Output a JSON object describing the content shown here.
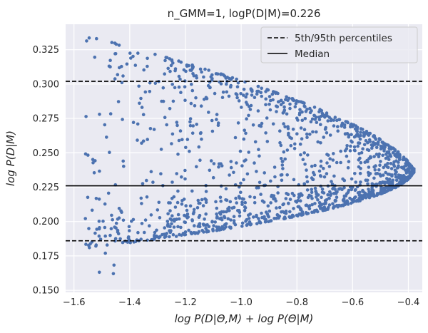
{
  "chart_data": {
    "type": "scatter",
    "title": "n_GMM=1, logP(D|M)=0.226",
    "xlabel": "log P(D|Θ,M) + log P(Θ|M)",
    "ylabel": "log P(D|M)",
    "xlim": [
      -1.63,
      -0.35
    ],
    "ylim": [
      0.1485,
      0.3435
    ],
    "xticks": [
      -1.6,
      -1.4,
      -1.2,
      -1.0,
      -0.8,
      -0.6,
      -0.4
    ],
    "xtick_labels": [
      "−1.6",
      "−1.4",
      "−1.2",
      "−1.0",
      "−0.8",
      "−0.6",
      "−0.4"
    ],
    "yticks": [
      0.15,
      0.175,
      0.2,
      0.225,
      0.25,
      0.275,
      0.3,
      0.325
    ],
    "ytick_labels": [
      "0.150",
      "0.175",
      "0.200",
      "0.225",
      "0.250",
      "0.275",
      "0.300",
      "0.325"
    ],
    "grid": true,
    "point_color": "#4c72b0",
    "point_count": 1500,
    "point_shape": "parabolic fan opening left, apex near x=-0.38, y=0.239; dense lower boundary from (-1.55, 0.18) to apex; upper boundary from (-1.53, 0.34) to apex",
    "hlines": [
      {
        "name": "5th percentile",
        "y": 0.186,
        "style": "dashed",
        "color": "#000000"
      },
      {
        "name": "Median",
        "y": 0.226,
        "style": "solid",
        "color": "#000000"
      },
      {
        "name": "95th percentile",
        "y": 0.302,
        "style": "dashed",
        "color": "#000000"
      }
    ],
    "legend": {
      "position": "top-right",
      "entries": [
        {
          "label": "5th/95th percentiles",
          "style": "dashed"
        },
        {
          "label": "Median",
          "style": "solid"
        }
      ]
    }
  },
  "colors": {
    "background": "#eaeaf2",
    "grid": "#ffffff",
    "points": "#4c72b0",
    "lines": "#000000"
  }
}
